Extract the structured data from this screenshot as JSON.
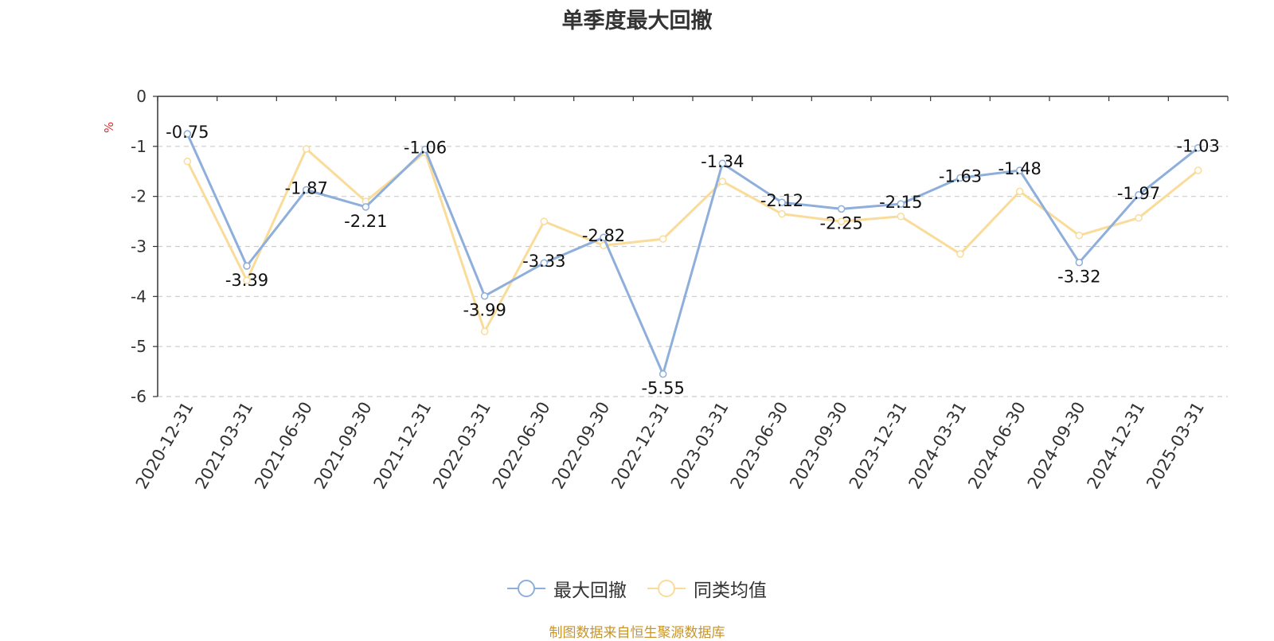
{
  "chart_data": {
    "type": "line",
    "title": "单季度最大回撤",
    "ylabel": "%",
    "ylim": [
      -6,
      0
    ],
    "yticks": [
      0,
      -1,
      -2,
      -3,
      -4,
      -5,
      -6
    ],
    "grid": true,
    "legend_position": "bottom",
    "categories": [
      "2020-12-31",
      "2021-03-31",
      "2021-06-30",
      "2021-09-30",
      "2021-12-31",
      "2022-03-31",
      "2022-06-30",
      "2022-09-30",
      "2022-12-31",
      "2023-03-31",
      "2023-06-30",
      "2023-09-30",
      "2023-12-31",
      "2024-03-31",
      "2024-06-30",
      "2024-09-30",
      "2024-12-31",
      "2025-03-31"
    ],
    "series": [
      {
        "name": "最大回撤",
        "color": "#8eaedb",
        "show_labels": true,
        "values": [
          -0.75,
          -3.39,
          -1.87,
          -2.21,
          -1.06,
          -3.99,
          -3.33,
          -2.82,
          -5.55,
          -1.34,
          -2.12,
          -2.25,
          -2.15,
          -1.63,
          -1.48,
          -3.32,
          -1.97,
          -1.03
        ]
      },
      {
        "name": "同类均值",
        "color": "#fadc9a",
        "show_labels": false,
        "values": [
          -1.3,
          -3.68,
          -1.05,
          -2.1,
          -1.12,
          -4.7,
          -2.5,
          -2.98,
          -2.85,
          -1.7,
          -2.35,
          -2.5,
          -2.4,
          -3.15,
          -1.9,
          -2.78,
          -2.43,
          -1.48
        ]
      }
    ]
  },
  "footer": {
    "source": "制图数据来自恒生聚源数据库"
  }
}
